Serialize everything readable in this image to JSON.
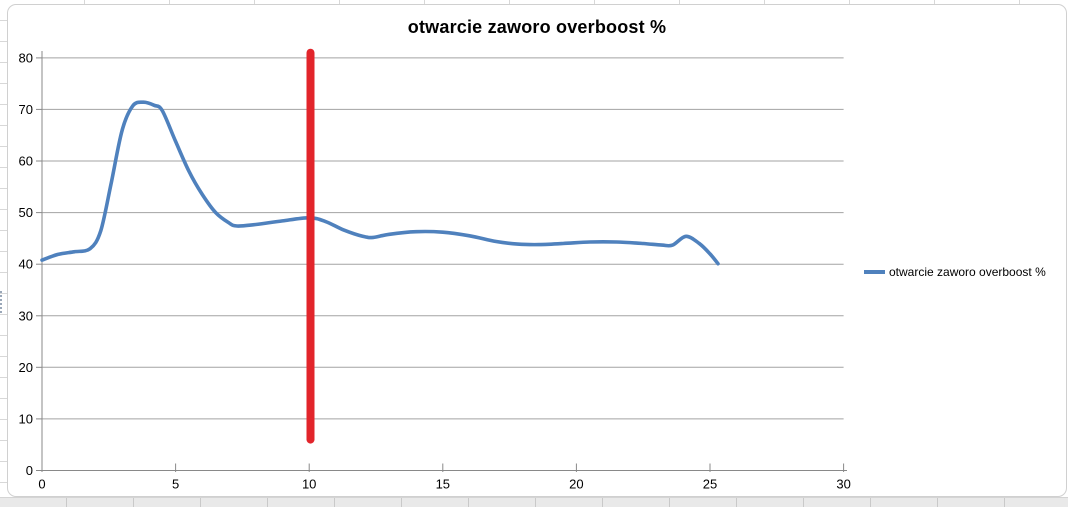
{
  "chart": {
    "title": "otwarcie zaworo overboost %",
    "legend": {
      "label": "otwarcie zaworo overboost %"
    }
  },
  "chart_data": {
    "type": "line",
    "title": "otwarcie zaworo overboost %",
    "xlabel": "",
    "ylabel": "",
    "xlim": [
      0,
      30
    ],
    "ylim": [
      0,
      81.5
    ],
    "x_ticks": [
      0,
      5,
      10,
      15,
      20,
      25,
      30
    ],
    "y_ticks": [
      0,
      10,
      20,
      30,
      40,
      50,
      60,
      70,
      80
    ],
    "grid": "horizontal",
    "legend_position": "right",
    "series": [
      {
        "name": "otwarcie zaworo overboost %",
        "color": "#4f81bd",
        "points": [
          [
            0,
            40.8
          ],
          [
            0.6,
            41.9
          ],
          [
            1.2,
            42.4
          ],
          [
            1.8,
            43.0
          ],
          [
            2.2,
            46.5
          ],
          [
            2.6,
            56.0
          ],
          [
            3.0,
            66.0
          ],
          [
            3.4,
            70.7
          ],
          [
            3.8,
            71.4
          ],
          [
            4.2,
            70.8
          ],
          [
            4.5,
            69.8
          ],
          [
            5.0,
            63.8
          ],
          [
            5.5,
            58.0
          ],
          [
            6.0,
            53.5
          ],
          [
            6.5,
            50.0
          ],
          [
            7.0,
            48.0
          ],
          [
            7.3,
            47.4
          ],
          [
            8.0,
            47.7
          ],
          [
            9.0,
            48.4
          ],
          [
            10.0,
            49.0
          ],
          [
            10.6,
            48.3
          ],
          [
            11.3,
            46.6
          ],
          [
            12.0,
            45.4
          ],
          [
            12.4,
            45.2
          ],
          [
            13.0,
            45.8
          ],
          [
            14.0,
            46.3
          ],
          [
            15.0,
            46.2
          ],
          [
            16.0,
            45.5
          ],
          [
            17.0,
            44.4
          ],
          [
            17.8,
            43.9
          ],
          [
            18.6,
            43.8
          ],
          [
            19.5,
            44.0
          ],
          [
            20.5,
            44.3
          ],
          [
            21.5,
            44.3
          ],
          [
            22.5,
            44.0
          ],
          [
            23.2,
            43.7
          ],
          [
            23.6,
            43.7
          ],
          [
            24.1,
            45.4
          ],
          [
            24.6,
            44.0
          ],
          [
            25.0,
            42.0
          ],
          [
            25.3,
            40.1
          ]
        ]
      }
    ],
    "marker_line": {
      "x": 10.05,
      "y_from": 6,
      "y_to": 81,
      "color": "#e2252b"
    },
    "colors": {
      "gridline": "#a3a3a3",
      "axis": "#898989",
      "tick_label": "#000000",
      "series_line": "#4f81bd",
      "marker_line": "#e2252b"
    }
  }
}
